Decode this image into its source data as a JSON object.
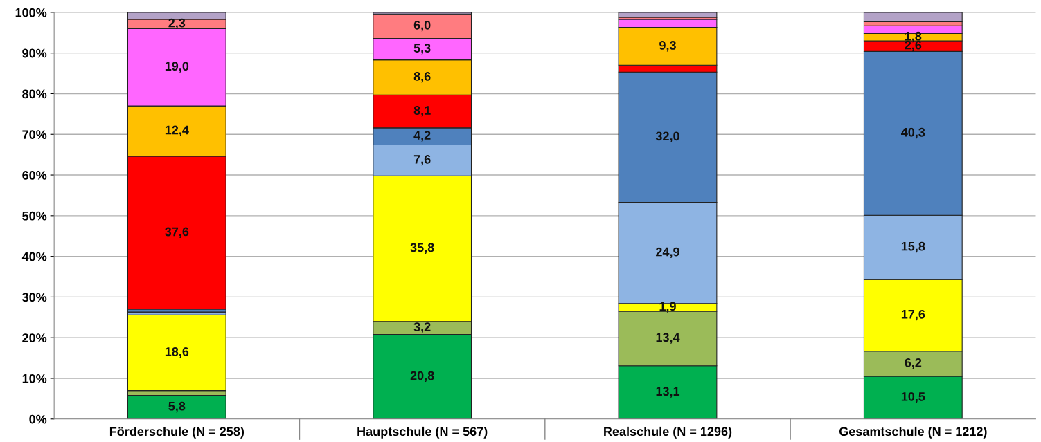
{
  "chart_data": {
    "type": "bar",
    "stacked": true,
    "grid": "y",
    "legend": false,
    "categories": [
      "Förderschule (N = 258)",
      "Hauptschule (N = 567)",
      "Realschule (N = 1296)",
      "Gesamtschule (N = 1212)"
    ],
    "ylim": [
      0,
      100
    ],
    "yticks": [
      {
        "value": 0,
        "label": "0%"
      },
      {
        "value": 10,
        "label": "10%"
      },
      {
        "value": 20,
        "label": "20%"
      },
      {
        "value": 30,
        "label": "30%"
      },
      {
        "value": 40,
        "label": "40%"
      },
      {
        "value": 50,
        "label": "50%"
      },
      {
        "value": 60,
        "label": "60%"
      },
      {
        "value": 70,
        "label": "70%"
      },
      {
        "value": 80,
        "label": "80%"
      },
      {
        "value": 90,
        "label": "90%"
      },
      {
        "value": 100,
        "label": "100%"
      }
    ],
    "series": [
      {
        "color": "#00b050",
        "values": [
          5.8,
          20.8,
          13.1,
          10.5
        ],
        "value_labels": [
          "5,8",
          "20,8",
          "13,1",
          "10,5"
        ]
      },
      {
        "color": "#9bbb59",
        "values": [
          1.2,
          3.2,
          13.4,
          6.2
        ],
        "value_labels": [
          null,
          "3,2",
          "13,4",
          "6,2"
        ]
      },
      {
        "color": "#ffff00",
        "values": [
          18.6,
          35.8,
          1.9,
          17.6
        ],
        "value_labels": [
          "18,6",
          "35,8",
          "1,9",
          "17,6"
        ]
      },
      {
        "color": "#8eb4e3",
        "values": [
          0.7,
          7.6,
          24.9,
          15.8
        ],
        "value_labels": [
          null,
          "7,6",
          "24,9",
          "15,8"
        ]
      },
      {
        "color": "#4f81bd",
        "values": [
          0.7,
          4.2,
          32.0,
          40.3
        ],
        "value_labels": [
          null,
          "4,2",
          "32,0",
          "40,3"
        ]
      },
      {
        "color": "#ff0000",
        "values": [
          37.6,
          8.1,
          1.7,
          2.6
        ],
        "value_labels": [
          "37,6",
          "8,1",
          null,
          "2,6"
        ]
      },
      {
        "color": "#ffc000",
        "values": [
          12.4,
          8.6,
          9.3,
          1.8
        ],
        "value_labels": [
          "12,4",
          "8,6",
          "9,3",
          "1,8"
        ]
      },
      {
        "color": "#ff66ff",
        "values": [
          19.0,
          5.3,
          2.0,
          1.9
        ],
        "value_labels": [
          "19,0",
          "5,3",
          null,
          null
        ]
      },
      {
        "color": "#ff7c80",
        "values": [
          2.3,
          6.0,
          0.5,
          1.0
        ],
        "value_labels": [
          "2,3",
          "6,0",
          null,
          null
        ]
      },
      {
        "color": "#b3a2c7",
        "values": [
          1.7,
          0.4,
          1.2,
          2.3
        ],
        "value_labels": [
          null,
          null,
          null,
          null
        ]
      }
    ]
  }
}
